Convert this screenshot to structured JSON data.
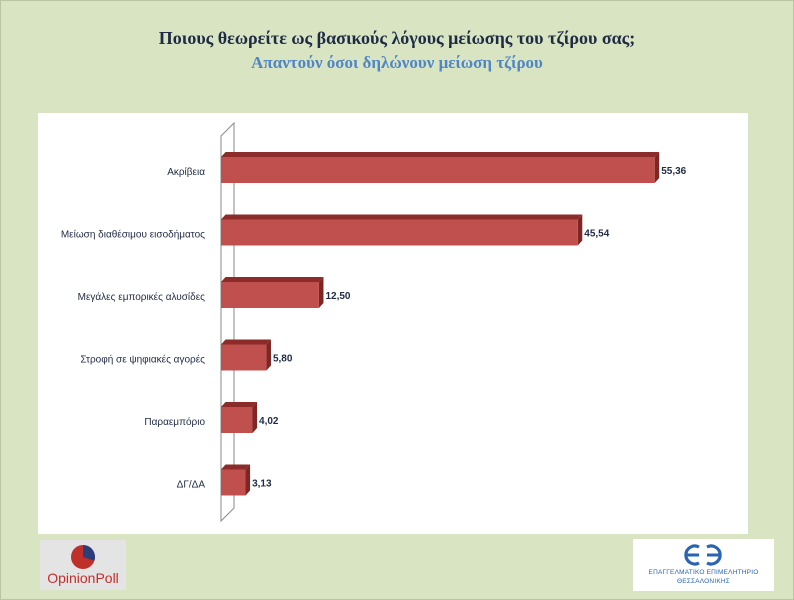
{
  "title": "Ποιους θεωρείτε ως βασικούς λόγους μείωσης του τζίρου σας;",
  "subtitle": "Απαντούν όσοι δηλώνουν μείωση τζίρου",
  "chart_data": {
    "type": "bar",
    "orientation": "horizontal",
    "style": "3d",
    "categories": [
      "Ακρίβεια",
      "Μείωση διαθέσιμου εισοδήματος",
      "Μεγάλες εμπορικές αλυσίδες",
      "Στροφή σε ψηφιακές αγορές",
      "Παραεμπόριο",
      "ΔΓ/ΔΑ"
    ],
    "values": [
      55.36,
      45.54,
      12.5,
      5.8,
      4.02,
      3.13
    ],
    "value_labels": [
      "55,36",
      "45,54",
      "12,50",
      "5,80",
      "4,02",
      "3,13"
    ],
    "xlim": [
      0,
      60
    ],
    "grid": false,
    "legend": "none",
    "colors": {
      "bar_front": "#c0504d",
      "bar_top": "#8c2c2a",
      "bar_side": "#7d2624",
      "label": "#1f2a44"
    }
  },
  "logos": {
    "opinion_poll": {
      "text": "OpinionPoll",
      "icon": "pie-circle-icon"
    },
    "epimelitirio": {
      "line1": "ΕΠΑΓΓΕΛΜΑΤΙΚΟ ΕΠΙΜΕΛΗΤΗΡΙΟ",
      "line2": "ΘΕΣΣΑΛΟΝΙΚΗΣ",
      "icon": "ee-monogram-icon"
    }
  }
}
